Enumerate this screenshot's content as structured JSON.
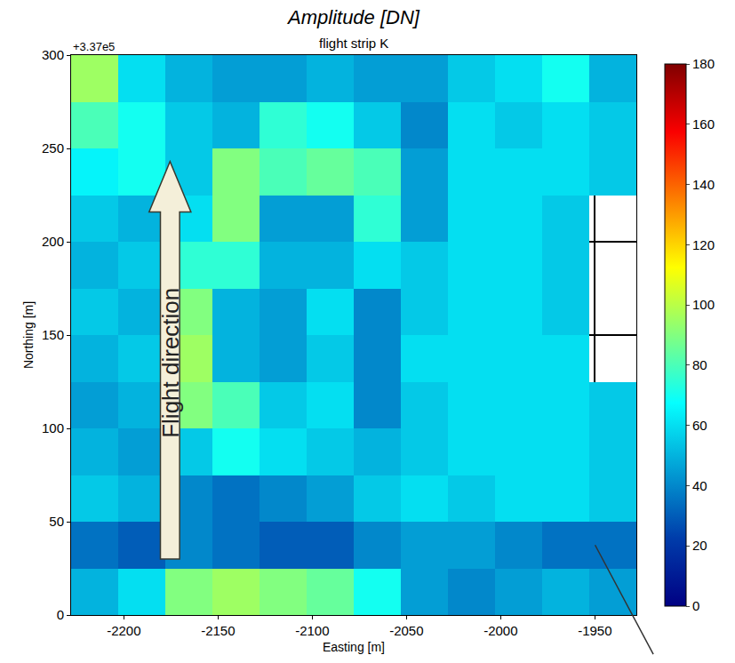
{
  "chart_data": {
    "type": "heatmap",
    "title": "Amplitude [DN]",
    "subtitle": "flight strip K",
    "x_label": "Easting [m]",
    "y_label": "Northing [m]",
    "y_offset_label": "+3.37e5",
    "annotations": [
      "Flight direction"
    ],
    "color": "jet",
    "grid": true,
    "xlim": [
      -2228,
      -1928
    ],
    "ylim": [
      0,
      300
    ],
    "xticks": [
      -2200,
      -2150,
      -2100,
      -2050,
      -2000,
      -1950
    ],
    "yticks": [
      0,
      50,
      100,
      150,
      200,
      250,
      300
    ],
    "zlim": [
      0,
      180
    ],
    "zticks": [
      0,
      20,
      40,
      60,
      80,
      100,
      120,
      140,
      160,
      180
    ],
    "x": [
      -2215.5,
      -2190.5,
      -2165.5,
      -2140.5,
      -2115.5,
      -2090.5,
      -2065.5,
      -2040.5,
      -2015.5,
      -1990.5,
      -1965.5,
      -1940.5
    ],
    "y": [
      12.5,
      37.5,
      62.5,
      87.5,
      112.5,
      137.5,
      162.5,
      187.5,
      212.5,
      237.5,
      262.5,
      287.5
    ],
    "z": [
      [
        50,
        60,
        90,
        95,
        90,
        85,
        70,
        45,
        40,
        45,
        50,
        45
      ],
      [
        35,
        30,
        40,
        35,
        30,
        30,
        40,
        45,
        45,
        40,
        35,
        35
      ],
      [
        55,
        50,
        40,
        35,
        40,
        45,
        55,
        60,
        55,
        60,
        60,
        55
      ],
      [
        50,
        45,
        55,
        70,
        60,
        55,
        50,
        55,
        60,
        60,
        60,
        55
      ],
      [
        45,
        50,
        90,
        80,
        55,
        60,
        40,
        55,
        60,
        60,
        60,
        55
      ],
      [
        50,
        55,
        95,
        50,
        45,
        55,
        40,
        60,
        60,
        60,
        60,
        null
      ],
      [
        55,
        50,
        90,
        50,
        45,
        60,
        40,
        55,
        60,
        60,
        55,
        null
      ],
      [
        50,
        55,
        75,
        75,
        50,
        50,
        60,
        55,
        60,
        60,
        55,
        null
      ],
      [
        55,
        50,
        60,
        90,
        45,
        45,
        75,
        45,
        60,
        60,
        55,
        null
      ],
      [
        65,
        70,
        55,
        90,
        80,
        85,
        80,
        45,
        60,
        60,
        60,
        55
      ],
      [
        80,
        70,
        55,
        50,
        75,
        70,
        55,
        40,
        60,
        55,
        60,
        55
      ],
      [
        95,
        60,
        50,
        45,
        45,
        50,
        45,
        45,
        55,
        60,
        70,
        50
      ]
    ]
  }
}
